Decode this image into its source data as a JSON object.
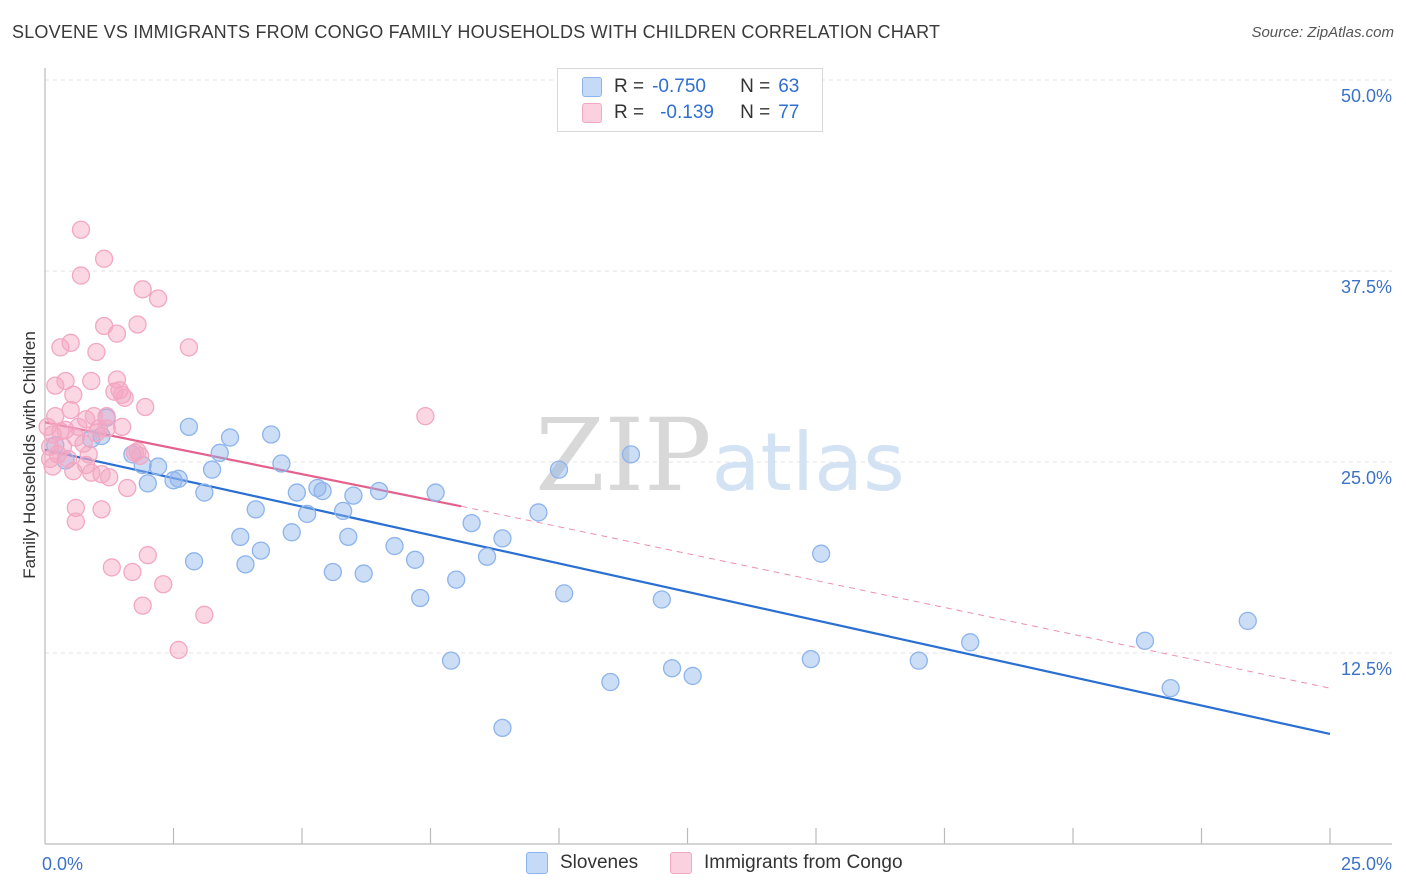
{
  "chart_data": {
    "type": "scatter",
    "title": "SLOVENE VS IMMIGRANTS FROM CONGO FAMILY HOUSEHOLDS WITH CHILDREN CORRELATION CHART",
    "source": "Source: ZipAtlas.com",
    "watermark": "ZIPatlas",
    "xlabel": "",
    "ylabel": "Family Households with Children",
    "xlim": [
      0,
      25
    ],
    "ylim": [
      0,
      50
    ],
    "x_tick_labels": [
      "0.0%",
      "25.0%"
    ],
    "y_tick_labels": [
      "12.5%",
      "25.0%",
      "37.5%",
      "50.0%"
    ],
    "y_tick_values": [
      12.5,
      25.0,
      37.5,
      50.0
    ],
    "legend": {
      "rows": [
        {
          "r_label": "R =",
          "r_value": "-0.750",
          "n_label": "N =",
          "n_value": "63"
        },
        {
          "r_label": "R =",
          "r_value": "-0.139",
          "n_label": "N =",
          "n_value": "77"
        }
      ],
      "bottom": [
        "Slovenes",
        "Immigrants from Congo"
      ]
    },
    "series": [
      {
        "name": "Slovenes",
        "color": "#8db4ec",
        "line_color": "#2a6fd1",
        "trend": {
          "x0": 0,
          "y0": 25.8,
          "x1": 25,
          "y1": 7.2,
          "dashed_to": null
        },
        "points": [
          [
            0.2,
            26.1
          ],
          [
            0.4,
            25.1
          ],
          [
            0.9,
            26.5
          ],
          [
            1.2,
            27.9
          ],
          [
            1.1,
            26.7
          ],
          [
            1.7,
            25.5
          ],
          [
            1.9,
            24.8
          ],
          [
            2.0,
            23.6
          ],
          [
            2.2,
            24.7
          ],
          [
            2.5,
            23.8
          ],
          [
            2.6,
            23.9
          ],
          [
            2.8,
            27.3
          ],
          [
            2.9,
            18.5
          ],
          [
            3.1,
            23.0
          ],
          [
            3.25,
            24.5
          ],
          [
            3.4,
            25.6
          ],
          [
            3.6,
            26.6
          ],
          [
            3.8,
            20.1
          ],
          [
            3.9,
            18.3
          ],
          [
            4.1,
            21.9
          ],
          [
            4.2,
            19.2
          ],
          [
            4.4,
            26.8
          ],
          [
            4.6,
            24.9
          ],
          [
            4.8,
            20.4
          ],
          [
            4.9,
            23.0
          ],
          [
            5.1,
            21.6
          ],
          [
            5.3,
            23.3
          ],
          [
            5.4,
            23.1
          ],
          [
            5.6,
            17.8
          ],
          [
            5.8,
            21.8
          ],
          [
            5.9,
            20.1
          ],
          [
            6.0,
            22.8
          ],
          [
            6.2,
            17.7
          ],
          [
            6.5,
            23.1
          ],
          [
            6.8,
            19.5
          ],
          [
            7.2,
            18.6
          ],
          [
            7.3,
            16.1
          ],
          [
            7.6,
            23.0
          ],
          [
            7.9,
            12.0
          ],
          [
            8.0,
            17.3
          ],
          [
            8.3,
            21.0
          ],
          [
            8.6,
            18.8
          ],
          [
            8.9,
            20.0
          ],
          [
            8.9,
            7.6
          ],
          [
            9.6,
            21.7
          ],
          [
            10.0,
            24.5
          ],
          [
            10.1,
            16.4
          ],
          [
            11.0,
            10.6
          ],
          [
            11.4,
            25.5
          ],
          [
            12.0,
            16.0
          ],
          [
            12.2,
            11.5
          ],
          [
            12.6,
            11.0
          ],
          [
            14.9,
            12.1
          ],
          [
            15.1,
            19.0
          ],
          [
            17.0,
            12.0
          ],
          [
            18.0,
            13.2
          ],
          [
            21.4,
            13.3
          ],
          [
            21.9,
            10.2
          ],
          [
            23.4,
            14.6
          ]
        ]
      },
      {
        "name": "Immigrants from Congo",
        "color": "#f3a7c2",
        "line_color": "#e4618e",
        "trend": {
          "x0": 0,
          "y0": 27.6,
          "x1": 8.1,
          "y1": 22.1,
          "dashed_to": {
            "x": 25,
            "y": 10.2
          }
        },
        "points": [
          [
            0.05,
            27.3
          ],
          [
            0.1,
            26.0
          ],
          [
            0.1,
            25.2
          ],
          [
            0.15,
            26.8
          ],
          [
            0.15,
            24.7
          ],
          [
            0.2,
            28.0
          ],
          [
            0.2,
            30.0
          ],
          [
            0.25,
            25.5
          ],
          [
            0.3,
            27.0
          ],
          [
            0.3,
            32.5
          ],
          [
            0.35,
            26.0
          ],
          [
            0.4,
            30.3
          ],
          [
            0.4,
            27.1
          ],
          [
            0.45,
            25.2
          ],
          [
            0.5,
            32.8
          ],
          [
            0.5,
            28.4
          ],
          [
            0.55,
            29.4
          ],
          [
            0.55,
            24.4
          ],
          [
            0.6,
            26.6
          ],
          [
            0.6,
            22.0
          ],
          [
            0.6,
            21.1
          ],
          [
            0.65,
            27.3
          ],
          [
            0.7,
            40.2
          ],
          [
            0.7,
            37.2
          ],
          [
            0.75,
            26.2
          ],
          [
            0.8,
            24.8
          ],
          [
            0.8,
            27.8
          ],
          [
            0.85,
            25.5
          ],
          [
            0.9,
            24.3
          ],
          [
            0.9,
            30.3
          ],
          [
            0.95,
            28.0
          ],
          [
            1.0,
            32.2
          ],
          [
            1.0,
            26.9
          ],
          [
            1.05,
            27.2
          ],
          [
            1.1,
            21.9
          ],
          [
            1.1,
            24.2
          ],
          [
            1.15,
            38.3
          ],
          [
            1.15,
            33.9
          ],
          [
            1.2,
            28.0
          ],
          [
            1.2,
            27.2
          ],
          [
            1.25,
            24.0
          ],
          [
            1.3,
            18.1
          ],
          [
            1.35,
            29.6
          ],
          [
            1.4,
            33.4
          ],
          [
            1.4,
            30.4
          ],
          [
            1.45,
            29.7
          ],
          [
            1.5,
            29.4
          ],
          [
            1.5,
            27.3
          ],
          [
            1.55,
            29.2
          ],
          [
            1.6,
            23.3
          ],
          [
            1.7,
            17.8
          ],
          [
            1.75,
            25.6
          ],
          [
            1.8,
            25.7
          ],
          [
            1.8,
            34.0
          ],
          [
            1.85,
            25.4
          ],
          [
            1.9,
            36.3
          ],
          [
            1.9,
            15.6
          ],
          [
            1.95,
            28.6
          ],
          [
            2.0,
            18.9
          ],
          [
            2.2,
            35.7
          ],
          [
            2.3,
            17.0
          ],
          [
            2.6,
            12.7
          ],
          [
            2.8,
            32.5
          ],
          [
            3.1,
            15.0
          ],
          [
            7.4,
            28.0
          ]
        ]
      }
    ]
  }
}
